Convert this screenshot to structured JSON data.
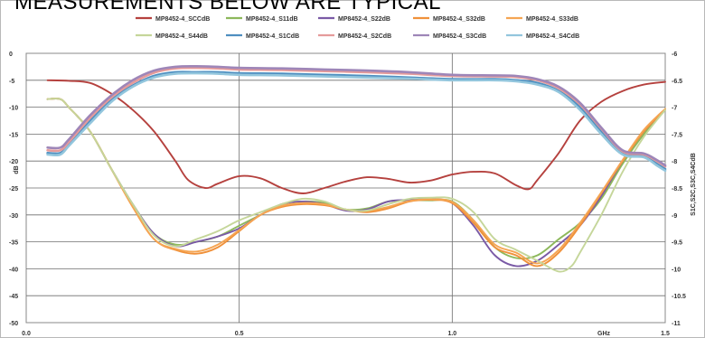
{
  "header": {
    "title": "MEASUREMENTS BELOW ARE TYPICAL"
  },
  "chart_data": {
    "type": "line",
    "title": "",
    "xlabel": "GHz",
    "ylabel": "dB",
    "y2label": "S1C,S2C,S3C,S4CdB",
    "xlim": [
      0.0,
      1.5
    ],
    "ylim": [
      -50,
      0
    ],
    "y2lim": [
      -11,
      -6
    ],
    "x_ticks": [
      "0.0",
      "0.5",
      "1.0",
      "1.5"
    ],
    "x_tick_values": [
      0.0,
      0.5,
      1.0,
      1.5
    ],
    "y_ticks": [
      "0",
      "-5",
      "-10",
      "-15",
      "-20",
      "-25",
      "-30",
      "-35",
      "-40",
      "-45",
      "-50"
    ],
    "y2_ticks": [
      "-6",
      "-6.5",
      "-7",
      "-7.5",
      "-8",
      "-8.5",
      "-9",
      "-9.5",
      "-10",
      "-10.5",
      "-11"
    ],
    "grid": true,
    "legend_position": "top",
    "series": [
      {
        "name": "MP8452-4_SCCdB",
        "color": "#b5413e",
        "axis": "left",
        "x": [
          0.05,
          0.1,
          0.15,
          0.2,
          0.25,
          0.3,
          0.35,
          0.38,
          0.42,
          0.45,
          0.5,
          0.55,
          0.6,
          0.65,
          0.7,
          0.75,
          0.8,
          0.85,
          0.9,
          0.95,
          1.0,
          1.05,
          1.1,
          1.15,
          1.18,
          1.2,
          1.25,
          1.3,
          1.35,
          1.4,
          1.45,
          1.5
        ],
        "y": [
          -5.0,
          -5.1,
          -5.5,
          -7.5,
          -10.5,
          -14.5,
          -20.0,
          -23.5,
          -25.0,
          -24.2,
          -22.8,
          -23.2,
          -25.0,
          -26.0,
          -25.0,
          -23.8,
          -23.0,
          -23.3,
          -24.0,
          -23.6,
          -22.5,
          -22.0,
          -22.3,
          -24.5,
          -25.2,
          -23.5,
          -18.5,
          -12.5,
          -9.0,
          -7.0,
          -5.8,
          -5.3
        ]
      },
      {
        "name": "MP8452-4_S11dB",
        "color": "#8db85b",
        "axis": "left",
        "x": [
          0.05,
          0.08,
          0.1,
          0.15,
          0.2,
          0.25,
          0.3,
          0.35,
          0.4,
          0.45,
          0.5,
          0.55,
          0.6,
          0.65,
          0.7,
          0.75,
          0.8,
          0.85,
          0.9,
          0.95,
          1.0,
          1.05,
          1.1,
          1.15,
          1.2,
          1.25,
          1.3,
          1.35,
          1.4,
          1.45,
          1.5
        ],
        "y": [
          -8.5,
          -8.5,
          -10.0,
          -14.5,
          -21.5,
          -28.0,
          -33.5,
          -35.5,
          -35.0,
          -34.0,
          -32.0,
          -30.0,
          -28.0,
          -27.5,
          -27.8,
          -29.0,
          -28.8,
          -27.5,
          -27.3,
          -27.3,
          -27.5,
          -31.0,
          -36.0,
          -38.0,
          -37.5,
          -34.5,
          -31.5,
          -27.0,
          -20.5,
          -15.0,
          -10.5
        ]
      },
      {
        "name": "MP8452-4_S22dB",
        "color": "#7a5aa6",
        "axis": "left",
        "x": [
          0.05,
          0.08,
          0.1,
          0.15,
          0.2,
          0.25,
          0.3,
          0.35,
          0.4,
          0.45,
          0.5,
          0.55,
          0.6,
          0.65,
          0.7,
          0.75,
          0.8,
          0.85,
          0.9,
          0.95,
          1.0,
          1.05,
          1.1,
          1.15,
          1.2,
          1.25,
          1.3,
          1.35,
          1.4,
          1.45,
          1.5
        ],
        "y": [
          -8.5,
          -8.5,
          -10.0,
          -14.5,
          -21.5,
          -28.0,
          -33.5,
          -35.8,
          -35.0,
          -34.0,
          -32.5,
          -30.0,
          -28.0,
          -27.5,
          -28.0,
          -29.2,
          -29.0,
          -27.5,
          -27.2,
          -27.0,
          -27.8,
          -32.0,
          -37.5,
          -39.5,
          -38.5,
          -35.5,
          -32.0,
          -26.5,
          -20.0,
          -14.5,
          -10.5
        ]
      },
      {
        "name": "MP8452-4_S32dB",
        "color": "#f0913a",
        "axis": "left",
        "x": [
          0.05,
          0.08,
          0.1,
          0.15,
          0.2,
          0.25,
          0.3,
          0.35,
          0.4,
          0.45,
          0.5,
          0.55,
          0.6,
          0.65,
          0.7,
          0.75,
          0.8,
          0.85,
          0.9,
          0.95,
          1.0,
          1.05,
          1.1,
          1.15,
          1.2,
          1.25,
          1.3,
          1.35,
          1.4,
          1.45,
          1.5
        ],
        "y": [
          -8.5,
          -8.5,
          -10.0,
          -14.5,
          -21.5,
          -28.5,
          -34.5,
          -36.5,
          -37.2,
          -36.0,
          -33.0,
          -30.0,
          -28.5,
          -28.0,
          -28.2,
          -29.0,
          -29.5,
          -28.8,
          -27.5,
          -27.2,
          -27.8,
          -31.5,
          -36.0,
          -37.5,
          -39.5,
          -37.0,
          -32.0,
          -26.0,
          -20.0,
          -14.5,
          -10.5
        ]
      },
      {
        "name": "MP8452-4_S33dB",
        "color": "#f5a553",
        "axis": "left",
        "x": [
          0.05,
          0.08,
          0.1,
          0.15,
          0.2,
          0.25,
          0.3,
          0.35,
          0.4,
          0.45,
          0.5,
          0.55,
          0.6,
          0.65,
          0.7,
          0.75,
          0.8,
          0.85,
          0.9,
          0.95,
          1.0,
          1.05,
          1.1,
          1.15,
          1.2,
          1.25,
          1.3,
          1.35,
          1.4,
          1.45,
          1.5
        ],
        "y": [
          -8.5,
          -8.5,
          -10.0,
          -14.5,
          -21.5,
          -28.5,
          -34.5,
          -36.3,
          -36.8,
          -35.5,
          -32.8,
          -30.0,
          -28.3,
          -27.8,
          -28.0,
          -29.0,
          -29.3,
          -28.5,
          -27.4,
          -27.1,
          -27.6,
          -31.0,
          -35.5,
          -37.0,
          -39.0,
          -36.5,
          -31.5,
          -25.8,
          -19.8,
          -14.2,
          -10.3
        ]
      },
      {
        "name": "MP8452-4_S44dB",
        "color": "#c5d69a",
        "axis": "left",
        "x": [
          0.05,
          0.08,
          0.1,
          0.15,
          0.2,
          0.25,
          0.3,
          0.35,
          0.4,
          0.45,
          0.5,
          0.55,
          0.6,
          0.65,
          0.7,
          0.75,
          0.8,
          0.85,
          0.9,
          0.95,
          1.0,
          1.05,
          1.1,
          1.15,
          1.2,
          1.25,
          1.28,
          1.3,
          1.35,
          1.4,
          1.45,
          1.5
        ],
        "y": [
          -8.5,
          -8.5,
          -10.0,
          -14.5,
          -21.5,
          -28.0,
          -33.8,
          -35.8,
          -34.5,
          -33.0,
          -31.0,
          -29.5,
          -28.0,
          -27.0,
          -27.5,
          -29.0,
          -29.2,
          -28.0,
          -27.0,
          -26.8,
          -27.0,
          -29.5,
          -34.5,
          -36.5,
          -38.5,
          -40.5,
          -39.5,
          -37.0,
          -30.0,
          -22.0,
          -15.5,
          -10.5
        ]
      },
      {
        "name": "MP8452-4_S1CdB",
        "color": "#4f8fc0",
        "axis": "right",
        "x": [
          0.05,
          0.08,
          0.1,
          0.15,
          0.2,
          0.25,
          0.3,
          0.35,
          0.4,
          0.45,
          0.5,
          0.6,
          0.7,
          0.8,
          0.9,
          1.0,
          1.1,
          1.15,
          1.2,
          1.25,
          1.3,
          1.35,
          1.4,
          1.45,
          1.48,
          1.5
        ],
        "y": [
          -7.85,
          -7.85,
          -7.7,
          -7.25,
          -6.85,
          -6.6,
          -6.42,
          -6.35,
          -6.35,
          -6.35,
          -6.37,
          -6.38,
          -6.4,
          -6.42,
          -6.45,
          -6.48,
          -6.48,
          -6.5,
          -6.55,
          -6.7,
          -7.0,
          -7.45,
          -7.85,
          -7.9,
          -8.05,
          -8.15
        ]
      },
      {
        "name": "MP8452-4_S2CdB",
        "color": "#e59b9b",
        "axis": "right",
        "x": [
          0.05,
          0.08,
          0.1,
          0.15,
          0.2,
          0.25,
          0.3,
          0.35,
          0.4,
          0.45,
          0.5,
          0.6,
          0.7,
          0.8,
          0.9,
          1.0,
          1.1,
          1.15,
          1.2,
          1.25,
          1.3,
          1.35,
          1.4,
          1.45,
          1.48,
          1.5
        ],
        "y": [
          -7.8,
          -7.8,
          -7.65,
          -7.2,
          -6.82,
          -6.55,
          -6.36,
          -6.28,
          -6.27,
          -6.28,
          -6.3,
          -6.31,
          -6.33,
          -6.35,
          -6.38,
          -6.42,
          -6.43,
          -6.44,
          -6.5,
          -6.65,
          -6.95,
          -7.4,
          -7.82,
          -7.88,
          -8.0,
          -8.1
        ]
      },
      {
        "name": "MP8452-4_S3CdB",
        "color": "#9e86b8",
        "axis": "right",
        "x": [
          0.05,
          0.08,
          0.1,
          0.15,
          0.2,
          0.25,
          0.3,
          0.35,
          0.4,
          0.45,
          0.5,
          0.6,
          0.7,
          0.8,
          0.9,
          1.0,
          1.1,
          1.15,
          1.2,
          1.25,
          1.3,
          1.35,
          1.4,
          1.45,
          1.48,
          1.5
        ],
        "y": [
          -7.75,
          -7.75,
          -7.6,
          -7.15,
          -6.78,
          -6.5,
          -6.32,
          -6.25,
          -6.24,
          -6.25,
          -6.27,
          -6.28,
          -6.3,
          -6.32,
          -6.35,
          -6.4,
          -6.41,
          -6.42,
          -6.48,
          -6.62,
          -6.92,
          -7.38,
          -7.8,
          -7.86,
          -7.98,
          -8.08
        ]
      },
      {
        "name": "MP8452-4_S4CdB",
        "color": "#93c6dd",
        "axis": "right",
        "x": [
          0.05,
          0.08,
          0.1,
          0.15,
          0.2,
          0.25,
          0.3,
          0.35,
          0.4,
          0.45,
          0.5,
          0.6,
          0.7,
          0.8,
          0.9,
          1.0,
          1.1,
          1.15,
          1.2,
          1.25,
          1.3,
          1.35,
          1.4,
          1.45,
          1.48,
          1.5
        ],
        "y": [
          -7.88,
          -7.88,
          -7.72,
          -7.3,
          -6.9,
          -6.62,
          -6.45,
          -6.38,
          -6.37,
          -6.38,
          -6.4,
          -6.41,
          -6.43,
          -6.45,
          -6.47,
          -6.5,
          -6.5,
          -6.52,
          -6.58,
          -6.72,
          -7.05,
          -7.5,
          -7.88,
          -7.93,
          -8.08,
          -8.18
        ]
      }
    ]
  }
}
